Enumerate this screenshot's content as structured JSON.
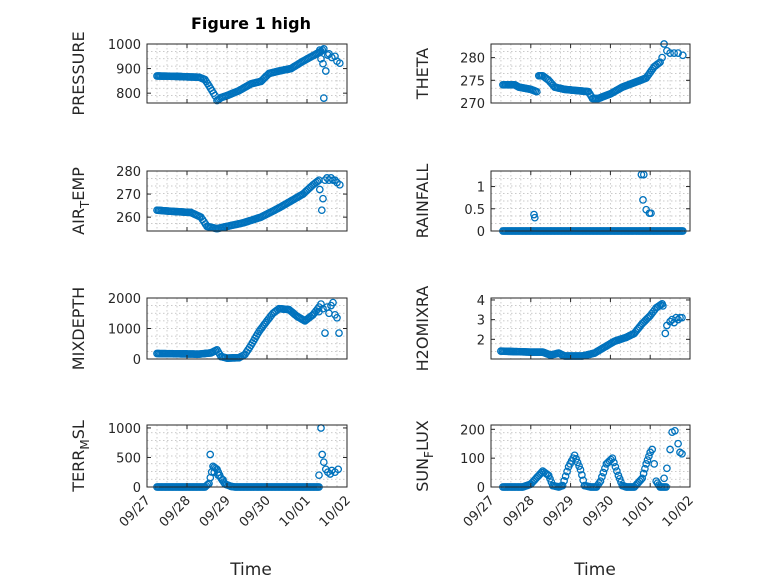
{
  "figure": {
    "title": "Figure 1 high",
    "xlabel": "Time"
  },
  "colors": {
    "marker": "#0072bd",
    "axis": "#262626",
    "grid": "#b9b9b9"
  },
  "chart_data": [
    {
      "type": "scatter",
      "ylabel": "PRESSURE",
      "ylabel_sub": [],
      "ylim": [
        760,
        1000
      ],
      "yticks": [
        800,
        900,
        1000
      ],
      "xlim": [
        0,
        5
      ],
      "xticks": [
        0,
        1,
        2,
        3,
        4,
        5
      ],
      "xticklabels": [
        "09/27",
        "09/28",
        "09/29",
        "09/30",
        "10/01",
        "10/02"
      ],
      "show_xticklabels": false,
      "grid": true,
      "knots": [
        [
          0.25,
          870
        ],
        [
          0.8,
          868
        ],
        [
          1.05,
          866
        ],
        [
          1.3,
          865
        ],
        [
          1.45,
          855
        ],
        [
          1.55,
          830
        ],
        [
          1.7,
          790
        ],
        [
          1.75,
          770
        ],
        [
          1.85,
          782
        ],
        [
          2.0,
          790
        ],
        [
          2.3,
          810
        ],
        [
          2.6,
          838
        ],
        [
          2.85,
          848
        ],
        [
          3.05,
          880
        ],
        [
          3.3,
          890
        ],
        [
          3.6,
          900
        ],
        [
          3.9,
          930
        ],
        [
          4.35,
          970
        ],
        [
          4.42,
          980
        ]
      ],
      "extra_points": [
        [
          4.32,
          975
        ],
        [
          4.35,
          940
        ],
        [
          4.4,
          920
        ],
        [
          4.42,
          780
        ],
        [
          4.47,
          890
        ],
        [
          4.52,
          955
        ],
        [
          4.55,
          960
        ],
        [
          4.62,
          945
        ],
        [
          4.7,
          950
        ],
        [
          4.75,
          930
        ],
        [
          4.82,
          922
        ]
      ]
    },
    {
      "type": "scatter",
      "ylabel": "THETA",
      "ylabel_sub": [],
      "ylim": [
        270,
        283
      ],
      "yticks": [
        270,
        275,
        280
      ],
      "xlim": [
        0,
        5
      ],
      "xticks": [
        0,
        1,
        2,
        3,
        4,
        5
      ],
      "xticklabels": [
        "09/27",
        "09/28",
        "09/29",
        "09/30",
        "10/01",
        "10/02"
      ],
      "show_xticklabels": false,
      "grid": true,
      "knots": [
        [
          0.3,
          274
        ],
        [
          0.6,
          274
        ],
        [
          0.7,
          273.5
        ],
        [
          1.0,
          273
        ],
        [
          1.15,
          272.5
        ],
        [
          1.2,
          276
        ],
        [
          1.3,
          276
        ],
        [
          1.45,
          275
        ],
        [
          1.6,
          273.5
        ],
        [
          1.85,
          273
        ],
        [
          2.2,
          272.7
        ],
        [
          2.45,
          272.5
        ],
        [
          2.55,
          271
        ],
        [
          2.7,
          271
        ],
        [
          3.0,
          272
        ],
        [
          3.3,
          273.5
        ],
        [
          3.6,
          274.5
        ],
        [
          3.9,
          275.5
        ],
        [
          4.1,
          278
        ],
        [
          4.25,
          279
        ]
      ],
      "extra_points": [
        [
          4.3,
          280
        ],
        [
          4.35,
          283
        ],
        [
          4.42,
          281.5
        ],
        [
          4.5,
          281
        ],
        [
          4.6,
          281
        ],
        [
          4.7,
          281
        ],
        [
          4.82,
          280.5
        ]
      ]
    },
    {
      "type": "scatter",
      "ylabel": "AIR",
      "ylabel_sub": [
        "T",
        "EMP"
      ],
      "ylim": [
        254,
        280
      ],
      "yticks": [
        260,
        270,
        280
      ],
      "xlim": [
        0,
        5
      ],
      "xticks": [
        0,
        1,
        2,
        3,
        4,
        5
      ],
      "xticklabels": [
        "09/27",
        "09/28",
        "09/29",
        "09/30",
        "10/01",
        "10/02"
      ],
      "show_xticklabels": false,
      "grid": true,
      "knots": [
        [
          0.25,
          263
        ],
        [
          0.65,
          262.5
        ],
        [
          1.1,
          262
        ],
        [
          1.35,
          260
        ],
        [
          1.5,
          256
        ],
        [
          1.75,
          255
        ],
        [
          2.0,
          256
        ],
        [
          2.4,
          257.5
        ],
        [
          2.85,
          260
        ],
        [
          3.3,
          264
        ],
        [
          3.6,
          267
        ],
        [
          3.9,
          270
        ],
        [
          4.15,
          274
        ],
        [
          4.3,
          276
        ]
      ],
      "extra_points": [
        [
          4.32,
          272
        ],
        [
          4.37,
          263
        ],
        [
          4.4,
          268
        ],
        [
          4.45,
          276
        ],
        [
          4.5,
          277
        ],
        [
          4.55,
          276
        ],
        [
          4.6,
          277
        ],
        [
          4.65,
          276
        ],
        [
          4.7,
          276
        ],
        [
          4.75,
          275
        ],
        [
          4.82,
          274
        ]
      ]
    },
    {
      "type": "scatter",
      "ylabel": "RAINFALL",
      "ylabel_sub": [],
      "ylim": [
        0,
        1.35
      ],
      "yticks": [
        0,
        0.5,
        1
      ],
      "xlim": [
        0,
        5
      ],
      "xticks": [
        0,
        1,
        2,
        3,
        4,
        5
      ],
      "xticklabels": [
        "09/27",
        "09/28",
        "09/29",
        "09/30",
        "10/01",
        "10/02"
      ],
      "show_xticklabels": false,
      "grid": true,
      "knots": [
        [
          0.3,
          0
        ],
        [
          4.82,
          0
        ]
      ],
      "extra_points": [
        [
          1.08,
          0.37
        ],
        [
          1.1,
          0.3
        ],
        [
          3.78,
          1.27
        ],
        [
          3.84,
          1.27
        ],
        [
          3.82,
          0.7
        ],
        [
          3.9,
          0.48
        ],
        [
          3.98,
          0.4
        ],
        [
          4.02,
          0.4
        ]
      ]
    },
    {
      "type": "scatter",
      "ylabel": "MIXDEPTH",
      "ylabel_sub": [],
      "ylim": [
        0,
        2000
      ],
      "yticks": [
        0,
        1000,
        2000
      ],
      "xlim": [
        0,
        5
      ],
      "xticks": [
        0,
        1,
        2,
        3,
        4,
        5
      ],
      "xticklabels": [
        "09/27",
        "09/28",
        "09/29",
        "09/30",
        "10/01",
        "10/02"
      ],
      "show_xticklabels": false,
      "grid": true,
      "knots": [
        [
          0.25,
          180
        ],
        [
          1.3,
          160
        ],
        [
          1.6,
          200
        ],
        [
          1.75,
          300
        ],
        [
          1.85,
          80
        ],
        [
          2.0,
          30
        ],
        [
          2.3,
          40
        ],
        [
          2.45,
          150
        ],
        [
          2.6,
          450
        ],
        [
          2.8,
          900
        ],
        [
          3.0,
          1250
        ],
        [
          3.15,
          1500
        ],
        [
          3.3,
          1650
        ],
        [
          3.55,
          1620
        ],
        [
          3.75,
          1400
        ],
        [
          3.95,
          1250
        ],
        [
          4.15,
          1450
        ],
        [
          4.3,
          1700
        ]
      ],
      "extra_points": [
        [
          4.3,
          1550
        ],
        [
          4.35,
          1800
        ],
        [
          4.4,
          1650
        ],
        [
          4.45,
          850
        ],
        [
          4.5,
          1700
        ],
        [
          4.55,
          1500
        ],
        [
          4.6,
          1750
        ],
        [
          4.65,
          1850
        ],
        [
          4.7,
          1450
        ],
        [
          4.75,
          1350
        ],
        [
          4.8,
          850
        ]
      ]
    },
    {
      "type": "scatter",
      "ylabel": "H2OMIXRA",
      "ylabel_sub": [],
      "ylim": [
        1.0,
        4.1
      ],
      "yticks": [
        2,
        3,
        4
      ],
      "xlim": [
        0,
        5
      ],
      "xticks": [
        0,
        1,
        2,
        3,
        4,
        5
      ],
      "xticklabels": [
        "09/27",
        "09/28",
        "09/29",
        "09/30",
        "10/01",
        "10/02"
      ],
      "show_xticklabels": false,
      "grid": true,
      "knots": [
        [
          0.25,
          1.4
        ],
        [
          1.0,
          1.35
        ],
        [
          1.3,
          1.35
        ],
        [
          1.5,
          1.2
        ],
        [
          1.7,
          1.3
        ],
        [
          1.85,
          1.15
        ],
        [
          2.3,
          1.15
        ],
        [
          2.6,
          1.3
        ],
        [
          2.85,
          1.6
        ],
        [
          3.1,
          1.9
        ],
        [
          3.4,
          2.1
        ],
        [
          3.6,
          2.3
        ],
        [
          3.8,
          2.8
        ],
        [
          4.0,
          3.2
        ],
        [
          4.15,
          3.6
        ],
        [
          4.3,
          3.8
        ]
      ],
      "extra_points": [
        [
          4.32,
          3.7
        ],
        [
          4.38,
          2.3
        ],
        [
          4.42,
          2.7
        ],
        [
          4.5,
          2.9
        ],
        [
          4.55,
          3.0
        ],
        [
          4.6,
          2.85
        ],
        [
          4.65,
          3.1
        ],
        [
          4.7,
          3.0
        ],
        [
          4.75,
          3.1
        ],
        [
          4.8,
          3.1
        ]
      ]
    },
    {
      "type": "scatter",
      "ylabel": "TERR",
      "ylabel_sub": [
        "M",
        "SL"
      ],
      "ylim": [
        0,
        1050
      ],
      "yticks": [
        0,
        500,
        1000
      ],
      "xlim": [
        0,
        5
      ],
      "xticks": [
        0,
        1,
        2,
        3,
        4,
        5
      ],
      "xticklabels": [
        "09/27",
        "09/28",
        "09/29",
        "09/30",
        "10/01",
        "10/02"
      ],
      "show_xticklabels": true,
      "grid": true,
      "knots": [
        [
          0.25,
          0
        ],
        [
          1.45,
          0
        ],
        [
          1.55,
          60
        ],
        [
          1.65,
          350
        ],
        [
          1.75,
          300
        ],
        [
          1.85,
          150
        ],
        [
          1.95,
          50
        ],
        [
          2.1,
          10
        ],
        [
          2.2,
          0
        ],
        [
          4.3,
          0
        ]
      ],
      "extra_points": [
        [
          1.58,
          550
        ],
        [
          1.68,
          250
        ],
        [
          1.78,
          200
        ],
        [
          1.9,
          120
        ],
        [
          4.3,
          200
        ],
        [
          4.35,
          1000
        ],
        [
          4.38,
          550
        ],
        [
          4.42,
          420
        ],
        [
          4.47,
          300
        ],
        [
          4.52,
          250
        ],
        [
          4.58,
          220
        ],
        [
          4.62,
          280
        ],
        [
          4.7,
          250
        ],
        [
          4.78,
          300
        ]
      ]
    },
    {
      "type": "scatter",
      "ylabel": "SUN",
      "ylabel_sub": [
        "F",
        "LUX"
      ],
      "ylim": [
        0,
        215
      ],
      "yticks": [
        0,
        100,
        200
      ],
      "xlim": [
        0,
        5
      ],
      "xticks": [
        0,
        1,
        2,
        3,
        4,
        5
      ],
      "xticklabels": [
        "09/27",
        "09/28",
        "09/29",
        "09/30",
        "10/01",
        "10/02"
      ],
      "show_xticklabels": true,
      "grid": true,
      "knots": [
        [
          0.3,
          0
        ],
        [
          0.8,
          0
        ],
        [
          1.0,
          10
        ],
        [
          1.2,
          40
        ],
        [
          1.3,
          55
        ],
        [
          1.45,
          40
        ],
        [
          1.55,
          5
        ],
        [
          1.7,
          0
        ],
        [
          1.8,
          5
        ],
        [
          1.95,
          70
        ],
        [
          2.1,
          110
        ],
        [
          2.25,
          60
        ],
        [
          2.35,
          5
        ],
        [
          2.5,
          0
        ],
        [
          2.65,
          0
        ],
        [
          2.75,
          20
        ],
        [
          2.9,
          80
        ],
        [
          3.05,
          100
        ],
        [
          3.2,
          40
        ],
        [
          3.3,
          5
        ],
        [
          3.4,
          0
        ],
        [
          3.6,
          0
        ],
        [
          3.8,
          30
        ],
        [
          3.9,
          80
        ],
        [
          4.0,
          120
        ],
        [
          4.05,
          130
        ],
        [
          4.1,
          80
        ],
        [
          4.15,
          20
        ],
        [
          4.25,
          0
        ],
        [
          4.4,
          0
        ]
      ],
      "extra_points": [
        [
          4.35,
          30
        ],
        [
          4.42,
          65
        ],
        [
          4.5,
          130
        ],
        [
          4.55,
          190
        ],
        [
          4.62,
          195
        ],
        [
          4.7,
          150
        ],
        [
          4.75,
          120
        ],
        [
          4.8,
          115
        ]
      ]
    }
  ]
}
